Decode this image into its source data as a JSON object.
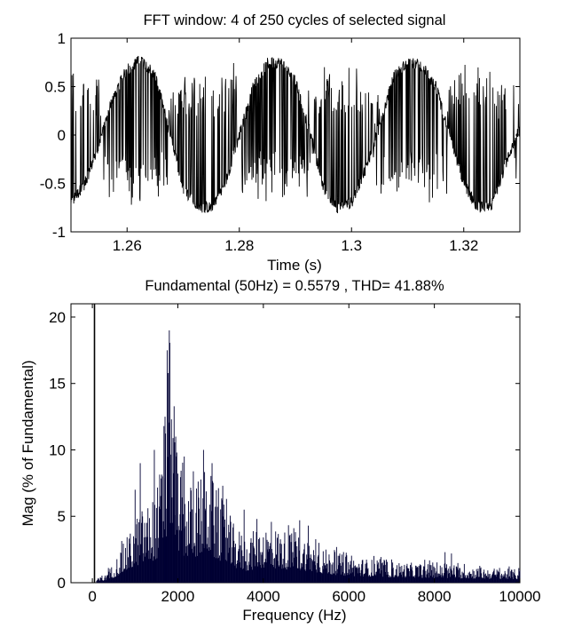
{
  "chart_data": [
    {
      "type": "line",
      "title": "FFT window: 4 of 250 cycles of selected signal",
      "xlabel": "Time (s)",
      "ylabel": "",
      "xlim": [
        1.25,
        1.33
      ],
      "ylim": [
        -1,
        1
      ],
      "xticks": [
        1.26,
        1.28,
        1.3,
        1.32
      ],
      "xtick_labels": [
        "1.26",
        "1.28",
        "1.3",
        "1.32"
      ],
      "yticks": [
        -1,
        -0.5,
        0,
        0.5,
        1
      ],
      "ytick_labels": [
        "-1",
        "-0.5",
        "0",
        "0.5",
        "1"
      ],
      "grid": false,
      "line_color": "#000000",
      "fundamental_hz": 50,
      "cycles_shown": 4,
      "cycles_total": 250,
      "signal_description": "PWM-like noisy sine, amplitude ~0.55 with switching spikes between ~-0.8 and ~0.8",
      "series": [
        {
          "x": [
            1.25,
            1.2525,
            1.255,
            1.2575,
            1.26,
            1.2625,
            1.265,
            1.2675,
            1.27,
            1.2725,
            1.275,
            1.2775,
            1.28,
            1.2825,
            1.285,
            1.2875,
            1.29,
            1.2925,
            1.295,
            1.2975,
            1.3,
            1.3025,
            1.305,
            1.3075,
            1.31,
            1.3125,
            1.315,
            1.3175,
            1.32,
            1.3225,
            1.325,
            1.3275,
            1.33
          ],
          "values": [
            -0.7,
            -0.5,
            -0.1,
            0.4,
            0.68,
            0.78,
            0.62,
            0.05,
            -0.55,
            -0.74,
            -0.75,
            -0.5,
            0.0,
            0.5,
            0.74,
            0.75,
            0.55,
            0.05,
            -0.55,
            -0.75,
            -0.7,
            -0.35,
            0.1,
            0.6,
            0.75,
            0.72,
            0.5,
            0.0,
            -0.5,
            -0.75,
            -0.72,
            -0.3,
            0.1
          ]
        }
      ]
    },
    {
      "type": "bar",
      "title": "Fundamental (50Hz) = 0.5579 , THD= 41.88%",
      "xlabel": "Frequency (Hz)",
      "ylabel": "Mag (% of Fundamental)",
      "xlim": [
        -500,
        10000
      ],
      "ylim": [
        0,
        21
      ],
      "xticks": [
        0,
        2000,
        4000,
        6000,
        8000,
        10000
      ],
      "xtick_labels": [
        "0",
        "2000",
        "4000",
        "6000",
        "8000",
        "10000"
      ],
      "yticks": [
        0,
        5,
        10,
        15,
        20
      ],
      "ytick_labels": [
        "0",
        "5",
        "10",
        "15",
        "20"
      ],
      "grid": false,
      "bar_color": "#000033",
      "fundamental_hz": 50,
      "fundamental_magnitude": 0.5579,
      "thd_percent": 41.88,
      "bin_width_hz": 12.5,
      "fundamental_bar": {
        "x": 50,
        "value": 100,
        "clipped": true
      },
      "envelope": {
        "x": [
          100,
          300,
          500,
          700,
          900,
          1100,
          1300,
          1500,
          1700,
          1800,
          1900,
          2100,
          2300,
          2500,
          2700,
          2900,
          3100,
          3300,
          3600,
          4000,
          4500,
          5000,
          5500,
          6000,
          7000,
          8000,
          9000,
          10000
        ],
        "values": [
          0.3,
          0.6,
          1.5,
          2.8,
          4.0,
          5.5,
          6.0,
          7.0,
          11.0,
          19.0,
          12.0,
          8.0,
          7.5,
          8.0,
          9.0,
          7.0,
          6.0,
          4.5,
          3.5,
          4.5,
          4.0,
          3.5,
          2.5,
          2.0,
          1.6,
          1.4,
          1.2,
          1.0
        ]
      },
      "peaks": [
        {
          "x": 1000,
          "value": 7.0
        },
        {
          "x": 1120,
          "value": 9.0
        },
        {
          "x": 1450,
          "value": 10.0
        },
        {
          "x": 1700,
          "value": 12.5
        },
        {
          "x": 1750,
          "value": 17.5
        },
        {
          "x": 1800,
          "value": 19.0
        },
        {
          "x": 1850,
          "value": 12.3
        },
        {
          "x": 1950,
          "value": 11.0
        },
        {
          "x": 2150,
          "value": 9.5
        },
        {
          "x": 2600,
          "value": 10.0
        },
        {
          "x": 2800,
          "value": 9.0
        },
        {
          "x": 3050,
          "value": 7.3
        },
        {
          "x": 3550,
          "value": 5.5
        },
        {
          "x": 3850,
          "value": 4.8
        },
        {
          "x": 4850,
          "value": 4.7
        },
        {
          "x": 5050,
          "value": 4.3
        },
        {
          "x": 5300,
          "value": 3.0
        },
        {
          "x": 8250,
          "value": 2.3
        },
        {
          "x": 8400,
          "value": 2.2
        }
      ]
    }
  ]
}
